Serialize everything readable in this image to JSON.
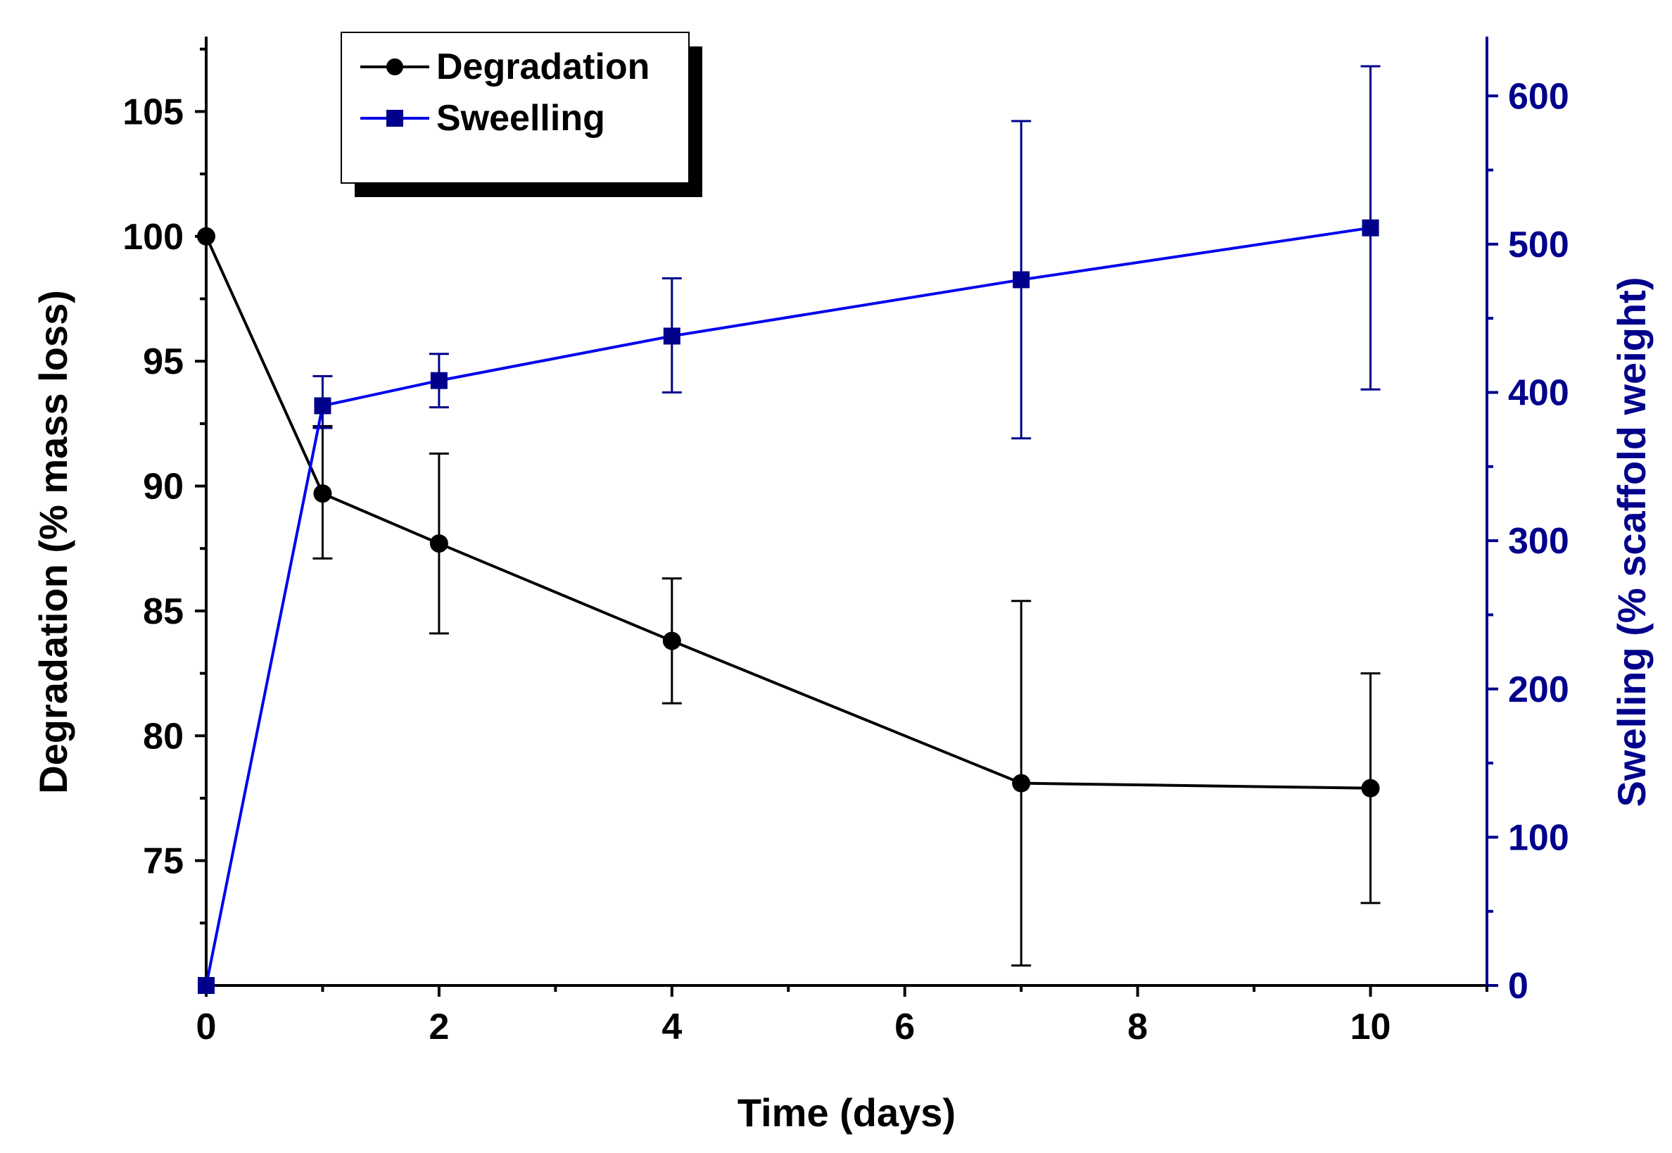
{
  "chart_data": {
    "type": "line",
    "xlabel": "Time (days)",
    "xlim": [
      0,
      11
    ],
    "x_ticks": [
      0,
      2,
      4,
      6,
      8,
      10
    ],
    "y_left": {
      "label": "Degradation (% mass loss)",
      "lim": [
        70,
        108
      ],
      "ticks": [
        75,
        80,
        85,
        90,
        95,
        100,
        105
      ],
      "color": "#000000"
    },
    "y_right": {
      "label": "Swelling (% scaffold weight)",
      "lim": [
        0,
        640
      ],
      "ticks": [
        0,
        100,
        200,
        300,
        400,
        500,
        600
      ],
      "color": "#00008b"
    },
    "legend": {
      "position": "top-left",
      "shadow": true
    },
    "grid": false,
    "series": [
      {
        "name": "Degradation",
        "axis": "left",
        "color": "#000000",
        "marker": "circle",
        "x": [
          0,
          1,
          2,
          4,
          7,
          10
        ],
        "y": [
          100,
          89.7,
          87.7,
          83.8,
          78.1,
          77.9
        ],
        "err_low": [
          null,
          87.1,
          84.1,
          81.3,
          70.8,
          73.3
        ],
        "err_high": [
          null,
          92.4,
          91.3,
          86.3,
          85.4,
          82.5
        ]
      },
      {
        "name": "Sweelling",
        "axis": "right",
        "color": "#0000ee",
        "error_color": "#00008b",
        "marker": "square",
        "x": [
          0,
          1,
          2,
          4,
          7,
          10
        ],
        "y": [
          0,
          391,
          408,
          438,
          476,
          511
        ],
        "err_low": [
          null,
          376,
          390,
          400,
          369,
          402
        ],
        "err_high": [
          null,
          411,
          426,
          477,
          583,
          620
        ]
      }
    ]
  }
}
